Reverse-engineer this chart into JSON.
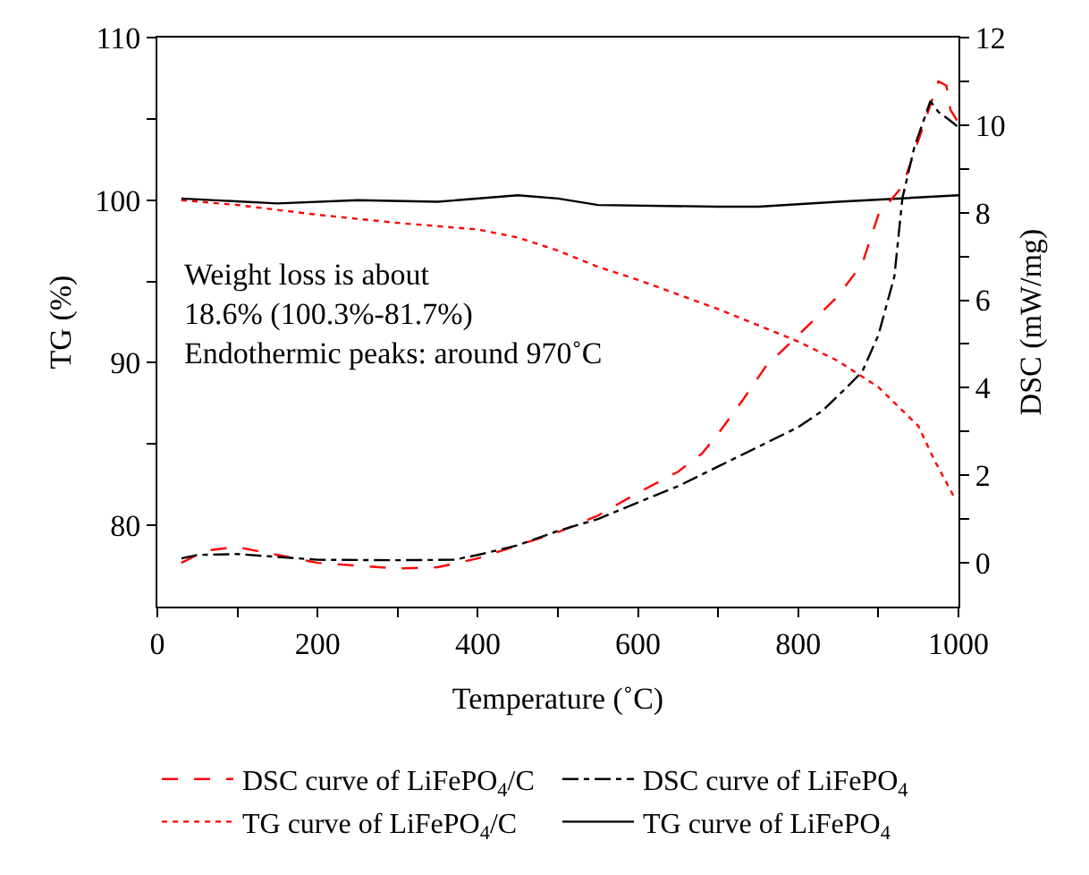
{
  "chart_data": {
    "type": "line",
    "xlabel": "Temperature (˚C)",
    "ylabel": "TG (%)",
    "y2label": "DSC (mW/mg)",
    "xlim": [
      0,
      1000
    ],
    "ylim": [
      75,
      110
    ],
    "y2lim": [
      -1,
      12
    ],
    "xticks": [
      0,
      {
        "value": 100,
        "label": null
      },
      200,
      {
        "value": 300,
        "label": null
      },
      400,
      {
        "value": 500,
        "label": null
      },
      600,
      {
        "value": 700,
        "label": null
      },
      800,
      {
        "value": 900,
        "label": null
      },
      1000
    ],
    "yticks": [
      80,
      {
        "value": 85,
        "label": null
      },
      90,
      {
        "value": 95,
        "label": null
      },
      100,
      {
        "value": 105,
        "label": null
      },
      110
    ],
    "y2ticks": [
      0,
      {
        "value": 1,
        "label": null
      },
      2,
      {
        "value": 3,
        "label": null
      },
      4,
      {
        "value": 5,
        "label": null
      },
      6,
      {
        "value": 7,
        "label": null
      },
      8,
      {
        "value": 9,
        "label": null
      },
      10,
      {
        "value": 11,
        "label": null
      },
      12
    ],
    "legend": "bottom",
    "marker": "none",
    "annotations": [
      "Weight loss is about\n18.6% (100.3%-81.7%)\nEndothermic peaks: around 970˚C"
    ],
    "series": [
      {
        "name": "DSC curve of LiFePO$_{4}$/C",
        "color": "#ff0000",
        "axis": "y2",
        "line_style": "dashed",
        "x": [
          30,
          60,
          100,
          150,
          200,
          300,
          350,
          400,
          450,
          500,
          550,
          600,
          650,
          680,
          700,
          730,
          760,
          800,
          850,
          880,
          900,
          930,
          950,
          975,
          985,
          990,
          1000
        ],
        "values": [
          0,
          0.28,
          0.36,
          0.18,
          0,
          -0.13,
          -0.1,
          0.1,
          0.4,
          0.7,
          1.08,
          1.6,
          2.08,
          2.5,
          2.95,
          3.7,
          4.5,
          5.2,
          6.1,
          6.84,
          7.95,
          8.6,
          9.65,
          11.0,
          10.9,
          10.35,
          10.05
        ]
      },
      {
        "name": "DSC curve of LiFePO$_{4}$",
        "color": "#000000",
        "axis": "y2",
        "line_style": "dashdot",
        "x": [
          30,
          50,
          100,
          200,
          300,
          370,
          400,
          450,
          500,
          550,
          600,
          650,
          700,
          750,
          800,
          830,
          860,
          880,
          900,
          920,
          930,
          945,
          965,
          975,
          990,
          1000
        ],
        "values": [
          0.1,
          0.18,
          0.2,
          0.07,
          0.06,
          0.07,
          0.18,
          0.4,
          0.73,
          1.0,
          1.38,
          1.75,
          2.2,
          2.65,
          3.1,
          3.47,
          4.0,
          4.37,
          5.2,
          6.54,
          8.33,
          9.5,
          10.55,
          10.3,
          10.1,
          9.95
        ]
      },
      {
        "name": "TG curve of LiFePO$_{4}$/C",
        "color": "#ff0000",
        "line_style": "dotted",
        "x": [
          30,
          100,
          200,
          300,
          400,
          450,
          500,
          550,
          600,
          700,
          800,
          850,
          900,
          950,
          970,
          995
        ],
        "values": [
          100.0,
          99.7,
          99.1,
          98.6,
          98.2,
          97.7,
          96.9,
          95.9,
          95.1,
          93.3,
          91.3,
          90.1,
          88.5,
          86.1,
          84.0,
          81.7
        ]
      },
      {
        "name": "TG curve of LiFePO$_{4}$",
        "color": "#000000",
        "line_style": "solid",
        "x": [
          30,
          150,
          250,
          350,
          450,
          500,
          550,
          700,
          750,
          850,
          1000
        ],
        "values": [
          100.1,
          99.8,
          100.0,
          99.9,
          100.3,
          100.1,
          99.7,
          99.6,
          99.6,
          99.9,
          100.3
        ]
      }
    ]
  }
}
